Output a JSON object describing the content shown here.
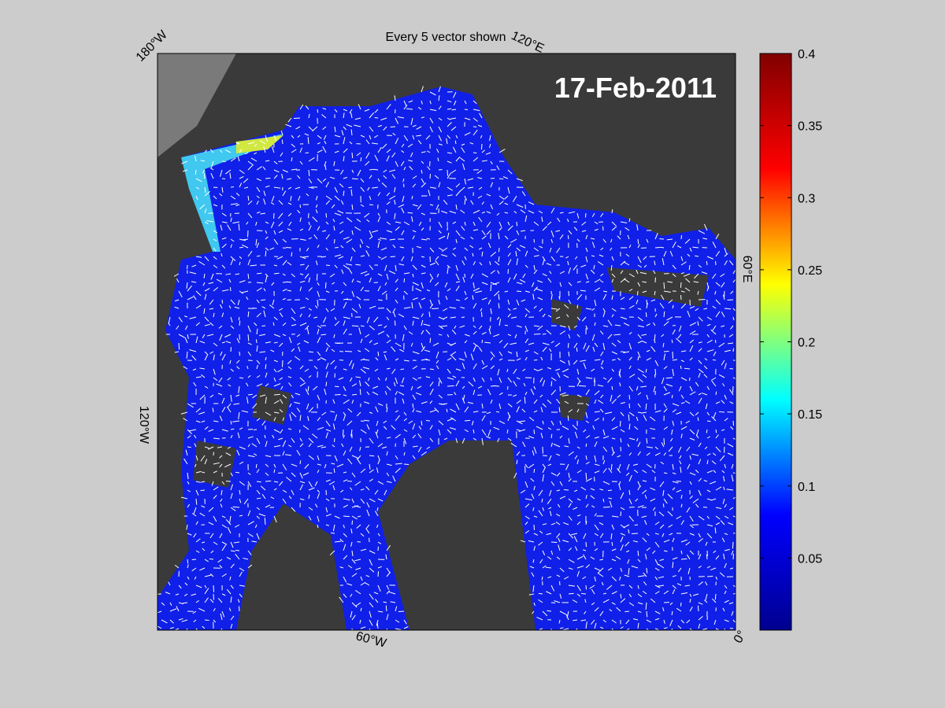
{
  "title": "Every 5 vector shown",
  "date_label": "17-Feb-2011",
  "map_labels": [
    "180°W",
    "120°E",
    "60°E",
    "0°",
    "60°W",
    "120°W"
  ],
  "colorbar": {
    "lim": [
      0,
      0.4
    ],
    "ticks": [
      0.05,
      0.1,
      0.15,
      0.2,
      0.25,
      0.3,
      0.35,
      0.4
    ],
    "colors": [
      "#00008f",
      "#0000ff",
      "#00ffff",
      "#ffff00",
      "#ff0000",
      "#800000"
    ]
  }
}
